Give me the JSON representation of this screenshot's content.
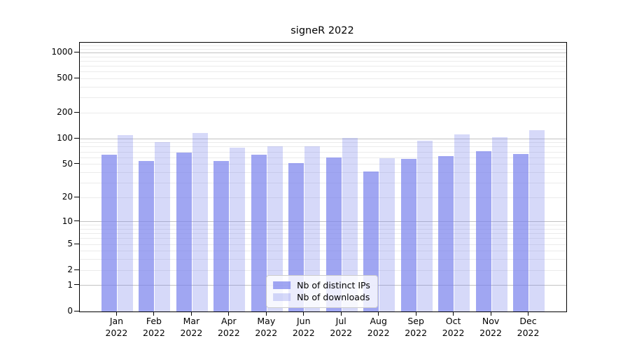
{
  "chart_data": {
    "type": "bar",
    "title": "signeR 2022",
    "categories": [
      {
        "month": "Jan",
        "year": "2022"
      },
      {
        "month": "Feb",
        "year": "2022"
      },
      {
        "month": "Mar",
        "year": "2022"
      },
      {
        "month": "Apr",
        "year": "2022"
      },
      {
        "month": "May",
        "year": "2022"
      },
      {
        "month": "Jun",
        "year": "2022"
      },
      {
        "month": "Jul",
        "year": "2022"
      },
      {
        "month": "Aug",
        "year": "2022"
      },
      {
        "month": "Sep",
        "year": "2022"
      },
      {
        "month": "Oct",
        "year": "2022"
      },
      {
        "month": "Nov",
        "year": "2022"
      },
      {
        "month": "Dec",
        "year": "2022"
      }
    ],
    "series": [
      {
        "name": "Nb of distinct IPs",
        "color": "rgba(120,128,236,0.7)",
        "values": [
          65,
          55,
          69,
          55,
          65,
          52,
          60,
          41,
          58,
          62,
          72,
          66
        ]
      },
      {
        "name": "Nb of downloads",
        "color": "rgba(120,128,236,0.3)",
        "values": [
          110,
          91,
          116,
          79,
          82,
          82,
          102,
          59,
          94,
          112,
          105,
          125
        ]
      }
    ],
    "yscale": "log1p",
    "yticks": [
      0,
      1,
      2,
      5,
      10,
      20,
      50,
      100,
      200,
      500,
      1000
    ],
    "ylim": [
      0,
      1311
    ],
    "grid": true,
    "legend_position": "lower center",
    "colors": {
      "major_grid": "#c3c3c3",
      "minor_grid": "#ebebeb",
      "spine": "#000000"
    }
  }
}
